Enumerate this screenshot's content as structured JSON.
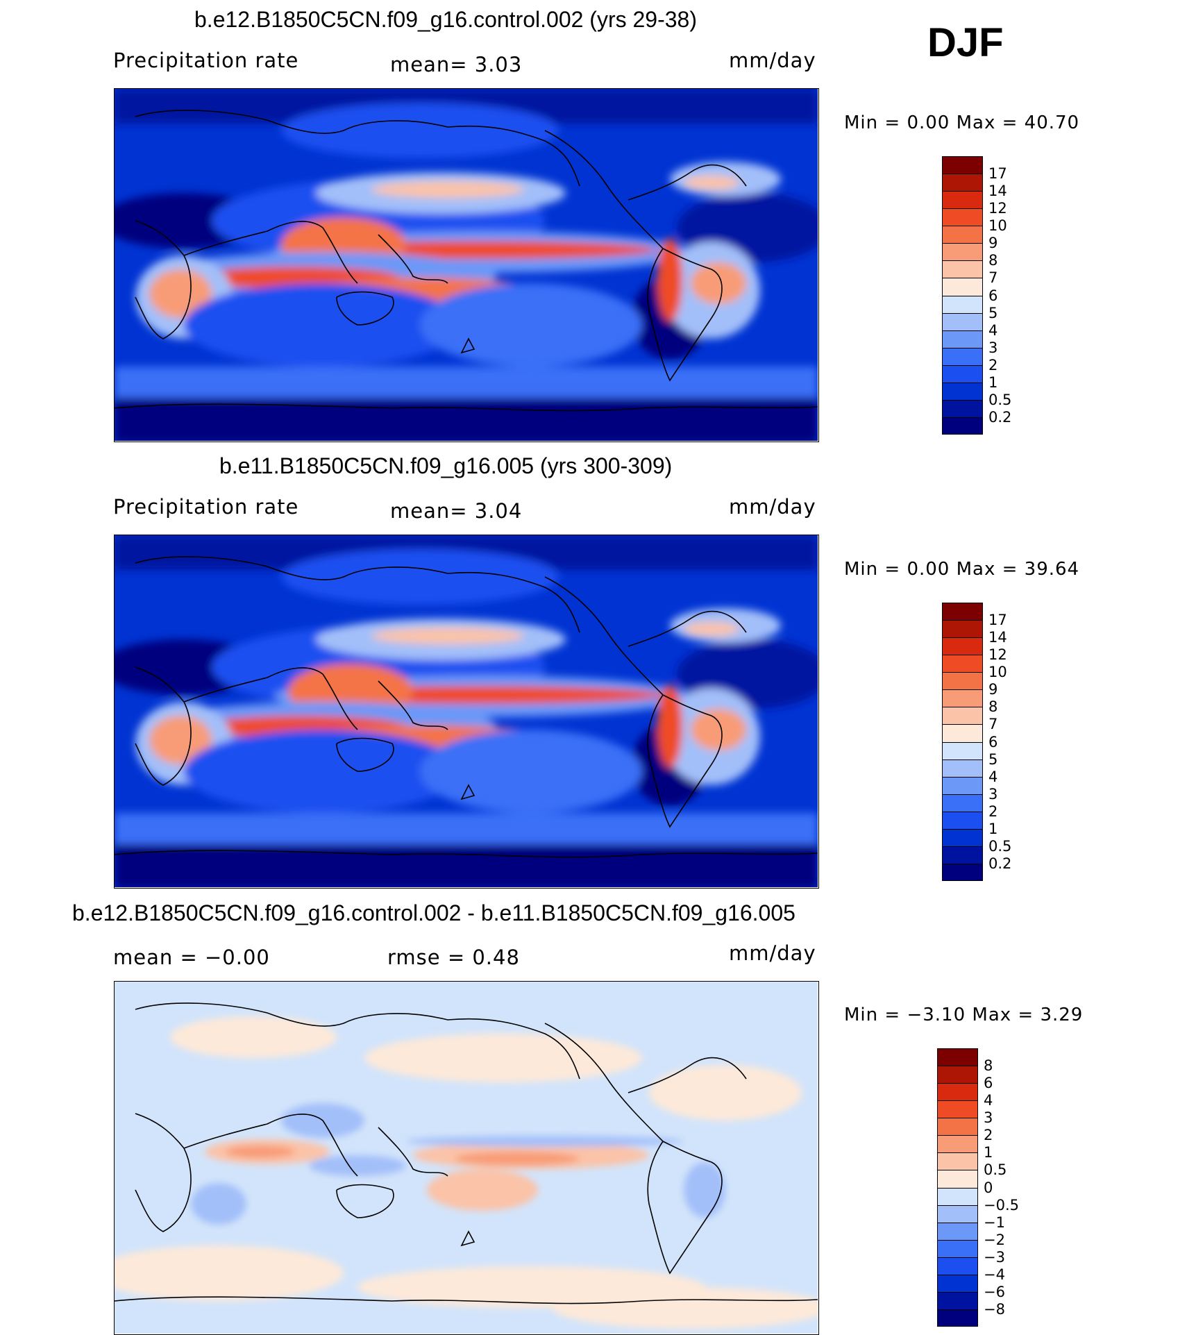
{
  "season": "DJF",
  "colors": {
    "abs_scale": [
      "#00007e",
      "#0013a0",
      "#0033d2",
      "#1c4ff0",
      "#3a70f7",
      "#6c98f8",
      "#a3bff9",
      "#d2e4fb",
      "#fde9d9",
      "#fbc3a8",
      "#f89c77",
      "#f47346",
      "#ef4c25",
      "#d92a10",
      "#ad1604",
      "#7c0000"
    ],
    "diff_scale": [
      "#00007e",
      "#0013a0",
      "#0033d2",
      "#1c4ff0",
      "#3a70f7",
      "#6c98f8",
      "#a3bff9",
      "#d2e4fb",
      "#fde9d9",
      "#fbc3a8",
      "#f89c77",
      "#f47346",
      "#ef4c25",
      "#d92a10",
      "#ad1604",
      "#7c0000"
    ]
  },
  "panels": [
    {
      "title": "b.e12.B1850C5CN.f09_g16.control.002 (yrs 29-38)",
      "left_label": "Precipitation  rate",
      "stat_text": "mean=     3.03",
      "units": "mm/day",
      "minmax": "Min  =      0.00  Max  =    40.70",
      "kind": "abs"
    },
    {
      "title": "b.e11.B1850C5CN.f09_g16.005 (yrs 300-309)",
      "left_label": "Precipitation  rate",
      "stat_text": "mean=     3.04",
      "units": "mm/day",
      "minmax": "Min  =      0.00  Max  =    39.64",
      "kind": "abs"
    },
    {
      "title": "b.e12.B1850C5CN.f09_g16.control.002 - b.e11.B1850C5CN.f09_g16.005",
      "left_label": "mean  =    −0.00",
      "stat_text": "rmse  =      0.48",
      "units": "mm/day",
      "minmax": "Min  =    −3.10  Max  =      3.29",
      "kind": "diff"
    }
  ],
  "chart_data": [
    {
      "type": "heatmap",
      "title": "b.e12.B1850C5CN.f09_g16.control.002 (yrs 29-38)",
      "variable": "Precipitation  rate",
      "units": "mm/day",
      "mean": 3.03,
      "min": 0.0,
      "max": 40.7,
      "colorbar_levels": [
        "0.2",
        "0.5",
        "1",
        "2",
        "3",
        "4",
        "5",
        "6",
        "7",
        "8",
        "9",
        "10",
        "12",
        "14",
        "17"
      ]
    },
    {
      "type": "heatmap",
      "title": "b.e11.B1850C5CN.f09_g16.005 (yrs 300-309)",
      "variable": "Precipitation  rate",
      "units": "mm/day",
      "mean": 3.04,
      "min": 0.0,
      "max": 39.64,
      "colorbar_levels": [
        "0.2",
        "0.5",
        "1",
        "2",
        "3",
        "4",
        "5",
        "6",
        "7",
        "8",
        "9",
        "10",
        "12",
        "14",
        "17"
      ]
    },
    {
      "type": "heatmap",
      "title": "b.e12.B1850C5CN.f09_g16.control.002 - b.e11.B1850C5CN.f09_g16.005",
      "units": "mm/day",
      "mean": -0.0,
      "rmse": 0.48,
      "min": -3.1,
      "max": 3.29,
      "colorbar_levels": [
        "−8",
        "−6",
        "−4",
        "−3",
        "−2",
        "−1",
        "−0.5",
        "0",
        "0.5",
        "1",
        "2",
        "3",
        "4",
        "6",
        "8"
      ]
    }
  ]
}
